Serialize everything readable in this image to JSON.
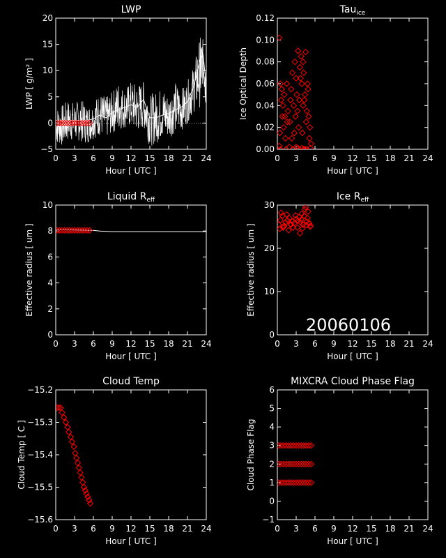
{
  "date_stamp": "20060106",
  "colors": {
    "background": "#000000",
    "axes": "#ffffff",
    "series_red": "#ff0000",
    "series_white": "#ffffff"
  },
  "chart_data": [
    {
      "id": "lwp",
      "type": "line+scatter",
      "title": "LWP",
      "xlabel": "Hour [ UTC ]",
      "ylabel": "LWP [ g/m² ]",
      "xlim": [
        0,
        24
      ],
      "ylim": [
        -5,
        20
      ],
      "xticks": [
        0,
        3,
        6,
        9,
        12,
        15,
        18,
        21,
        24
      ],
      "yticks": [
        -5,
        0,
        5,
        10,
        15,
        20
      ],
      "reference_line": 0,
      "series": [
        {
          "style": "line",
          "color": "#ffffff",
          "x": [
            0,
            1,
            2,
            3,
            4,
            5,
            6,
            7,
            8,
            9,
            10,
            11,
            12,
            13,
            14,
            15,
            16,
            17,
            18,
            19,
            20,
            21,
            22,
            23,
            23.5,
            24
          ],
          "y": [
            0.5,
            0.5,
            0.5,
            0.5,
            0.5,
            0.5,
            0.8,
            1.5,
            1,
            2,
            2.5,
            3,
            3.5,
            3,
            4.5,
            1,
            1,
            1.5,
            1.8,
            2.5,
            3,
            4,
            7,
            12,
            13,
            7
          ],
          "y_low": [
            -4,
            -4.5,
            -3.5,
            -3.5,
            -3.5,
            -4,
            -3,
            -2.5,
            -3,
            -2,
            -1.5,
            -1,
            -1,
            -2,
            -1,
            -4.5,
            -4,
            -3,
            -3,
            -2,
            -1.5,
            0,
            2,
            3,
            8,
            2
          ],
          "y_high": [
            3,
            3.5,
            4.5,
            4,
            4.5,
            3.5,
            4,
            6,
            5,
            6,
            8,
            6.5,
            8,
            7.5,
            8,
            5.5,
            6,
            7,
            5.5,
            8,
            6.5,
            8,
            11,
            16.5,
            16,
            10
          ]
        },
        {
          "style": "markers",
          "color": "#ff0000",
          "x": [
            0.2,
            0.6,
            1,
            1.4,
            1.8,
            2.2,
            2.6,
            3,
            3.4,
            3.8,
            4.2,
            4.6,
            5,
            5.4
          ],
          "y": [
            0,
            0,
            0,
            0,
            0,
            0,
            0,
            0,
            0,
            0,
            0,
            0,
            0,
            0
          ]
        }
      ]
    },
    {
      "id": "tau",
      "type": "scatter",
      "title": "Tau",
      "title_sub": "ice",
      "xlabel": "Hour [ UTC ]",
      "ylabel": "Ice Optical Depth",
      "xlim": [
        0,
        24
      ],
      "ylim": [
        0,
        0.12
      ],
      "xticks": [
        0,
        3,
        6,
        9,
        12,
        15,
        18,
        21,
        24
      ],
      "yticks": [
        0,
        0.02,
        0.04,
        0.06,
        0.08,
        0.1,
        0.12
      ],
      "ytick_labels": [
        "0.00",
        "0.02",
        "0.04",
        "0.06",
        "0.08",
        "0.10",
        "0.12"
      ],
      "series": [
        {
          "style": "markers",
          "color": "#ff0000",
          "x": [
            0.3,
            0.5,
            0.6,
            0.8,
            1.0,
            1.1,
            1.3,
            1.5,
            1.7,
            2.0,
            2.2,
            2.4,
            2.6,
            2.8,
            3.0,
            3.1,
            3.3,
            3.5,
            3.6,
            3.8,
            3.9,
            4.1,
            4.2,
            4.4,
            4.5,
            4.7,
            4.9,
            5.0,
            5.2,
            5.4,
            0.4,
            0.9,
            1.6,
            2.3,
            2.9,
            3.4,
            3.7,
            4.0,
            4.3,
            4.6,
            4.8,
            0.7,
            1.2,
            2.1,
            2.7,
            3.2,
            4.1,
            5.1,
            0.5,
            1.9,
            3.3,
            4.4,
            0.3,
            2.5,
            3.9,
            4.7,
            1.4,
            3.0,
            4.2,
            5.3
          ],
          "y": [
            0.102,
            0.06,
            0.045,
            0.03,
            0.02,
            0.05,
            0.01,
            0.06,
            0.035,
            0.025,
            0.055,
            0.07,
            0.04,
            0.08,
            0.065,
            0.05,
            0.09,
            0.045,
            0.075,
            0.085,
            0.06,
            0.04,
            0.07,
            0.05,
            0.089,
            0.035,
            0.055,
            0.03,
            0.02,
            0.005,
            0.015,
            0.04,
            0.025,
            0.01,
            0.03,
            0.02,
            0.065,
            0.015,
            0.045,
            0.025,
            0.06,
            0.055,
            0.03,
            0.045,
            0.015,
            0.035,
            0.08,
            0.01,
            0.0,
            0.002,
            0.001,
            0.0,
            0.003,
            0.0,
            0.001,
            0.0,
            0.0,
            0.002,
            0.0,
            0.001
          ]
        }
      ]
    },
    {
      "id": "liq_reff",
      "type": "line+scatter",
      "title": "Liquid R",
      "title_sub": "eff",
      "xlabel": "Hour [ UTC ]",
      "ylabel": "Effective radius [ um ]",
      "xlim": [
        0,
        24
      ],
      "ylim": [
        0,
        10
      ],
      "xticks": [
        0,
        3,
        6,
        9,
        12,
        15,
        18,
        21,
        24
      ],
      "yticks": [
        0,
        2,
        4,
        6,
        8,
        10
      ],
      "series": [
        {
          "style": "line",
          "color": "#ffffff",
          "x": [
            0,
            6,
            7,
            9,
            24
          ],
          "y": [
            8.1,
            8.05,
            8.0,
            7.95,
            7.95
          ]
        },
        {
          "style": "markers",
          "color": "#ff0000",
          "x": [
            0.2,
            0.6,
            1,
            1.4,
            1.8,
            2.2,
            2.6,
            3,
            3.4,
            3.8,
            4.2,
            4.6,
            5,
            5.4
          ],
          "y": [
            8.05,
            8.05,
            8.05,
            8.05,
            8.05,
            8.05,
            8.05,
            8.05,
            8.05,
            8.05,
            8.05,
            8.05,
            8.05,
            8.05
          ]
        }
      ]
    },
    {
      "id": "ice_reff",
      "type": "scatter",
      "title": "Ice R",
      "title_sub": "eff",
      "xlabel": "Hour [ UTC ]",
      "ylabel": "Effective radius [ um ]",
      "xlim": [
        0,
        24
      ],
      "ylim": [
        0,
        30
      ],
      "xticks": [
        0,
        3,
        6,
        9,
        12,
        15,
        18,
        21,
        24
      ],
      "yticks": [
        0,
        10,
        20,
        30
      ],
      "series": [
        {
          "style": "markers",
          "color": "#ff0000",
          "x": [
            0.2,
            0.5,
            0.8,
            1.0,
            1.3,
            1.6,
            1.9,
            2.2,
            2.4,
            2.7,
            3.0,
            3.2,
            3.5,
            3.7,
            3.9,
            4.1,
            4.3,
            4.5,
            4.7,
            4.9,
            5.1,
            5.3,
            0.4,
            1.1,
            1.8,
            2.5,
            3.3,
            4.0,
            4.6,
            5.2,
            0.6,
            1.5,
            2.9,
            3.6,
            4.4,
            0.9,
            2.1,
            3.8,
            4.8
          ],
          "y": [
            25.5,
            26.5,
            27.5,
            25,
            26,
            26.5,
            27,
            25.5,
            26.2,
            25.8,
            26.8,
            24.8,
            27.2,
            26,
            28,
            25.5,
            27.5,
            29.5,
            26.2,
            28.5,
            25.8,
            25.2,
            24.5,
            25.2,
            24.2,
            24.8,
            26.4,
            24.6,
            25.4,
            25.0,
            28.2,
            27.8,
            27.6,
            23.5,
            29.0,
            24.8,
            25.6,
            26.6,
            27.0
          ]
        }
      ]
    },
    {
      "id": "cloud_temp",
      "type": "scatter",
      "title": "Cloud Temp",
      "xlabel": "Hour [ UTC ]",
      "ylabel": "Cloud Temp [ C ]",
      "xlim": [
        0,
        24
      ],
      "ylim": [
        -15.6,
        -15.2
      ],
      "xticks": [
        0,
        3,
        6,
        9,
        12,
        15,
        18,
        21,
        24
      ],
      "yticks": [
        -15.6,
        -15.5,
        -15.4,
        -15.3,
        -15.2
      ],
      "ytick_labels": [
        "−15.6",
        "−15.5",
        "−15.4",
        "−15.3",
        "−15.2"
      ],
      "series": [
        {
          "style": "markers",
          "color": "#ff0000",
          "x": [
            0.2,
            0.5,
            0.8,
            1.0,
            1.3,
            1.6,
            1.9,
            2.1,
            2.4,
            2.6,
            2.9,
            3.1,
            3.3,
            3.5,
            3.7,
            3.9,
            4.1,
            4.3,
            4.5,
            4.7,
            4.9,
            5.1,
            5.3,
            5.5
          ],
          "y": [
            -15.255,
            -15.255,
            -15.255,
            -15.27,
            -15.285,
            -15.3,
            -15.315,
            -15.33,
            -15.345,
            -15.36,
            -15.375,
            -15.395,
            -15.41,
            -15.425,
            -15.44,
            -15.455,
            -15.47,
            -15.485,
            -15.5,
            -15.51,
            -15.52,
            -15.53,
            -15.54,
            -15.55
          ]
        }
      ]
    },
    {
      "id": "phase_flag",
      "type": "scatter",
      "title": "MIXCRA Cloud Phase Flag",
      "xlabel": "Hour [ UTC ]",
      "ylabel": "Cloud Phase Flag",
      "xlim": [
        0,
        24
      ],
      "ylim": [
        -1,
        6
      ],
      "xticks": [
        0,
        3,
        6,
        9,
        12,
        15,
        18,
        21,
        24
      ],
      "yticks": [
        -1,
        0,
        1,
        2,
        3,
        4,
        5,
        6
      ],
      "series": [
        {
          "style": "markers",
          "color": "#ff0000",
          "x": [
            0.2,
            0.6,
            1.0,
            1.4,
            1.8,
            2.2,
            2.6,
            3.0,
            3.4,
            3.8,
            4.2,
            4.6,
            5.0,
            5.4,
            0.2,
            0.6,
            1.0,
            1.4,
            1.8,
            2.2,
            2.6,
            3.0,
            3.4,
            3.8,
            4.2,
            4.6,
            5.0,
            5.4,
            0.2,
            0.6,
            1.0,
            1.4,
            1.8,
            2.2,
            2.6,
            3.0,
            3.4,
            3.8,
            4.2,
            4.6,
            5.0,
            5.4
          ],
          "y": [
            1,
            1,
            1,
            1,
            1,
            1,
            1,
            1,
            1,
            1,
            1,
            1,
            1,
            1,
            2,
            2,
            2,
            2,
            2,
            2,
            2,
            2,
            2,
            2,
            2,
            2,
            2,
            2,
            3,
            3,
            3,
            3,
            3,
            3,
            3,
            3,
            3,
            3,
            3,
            3,
            3,
            3
          ]
        }
      ]
    }
  ]
}
